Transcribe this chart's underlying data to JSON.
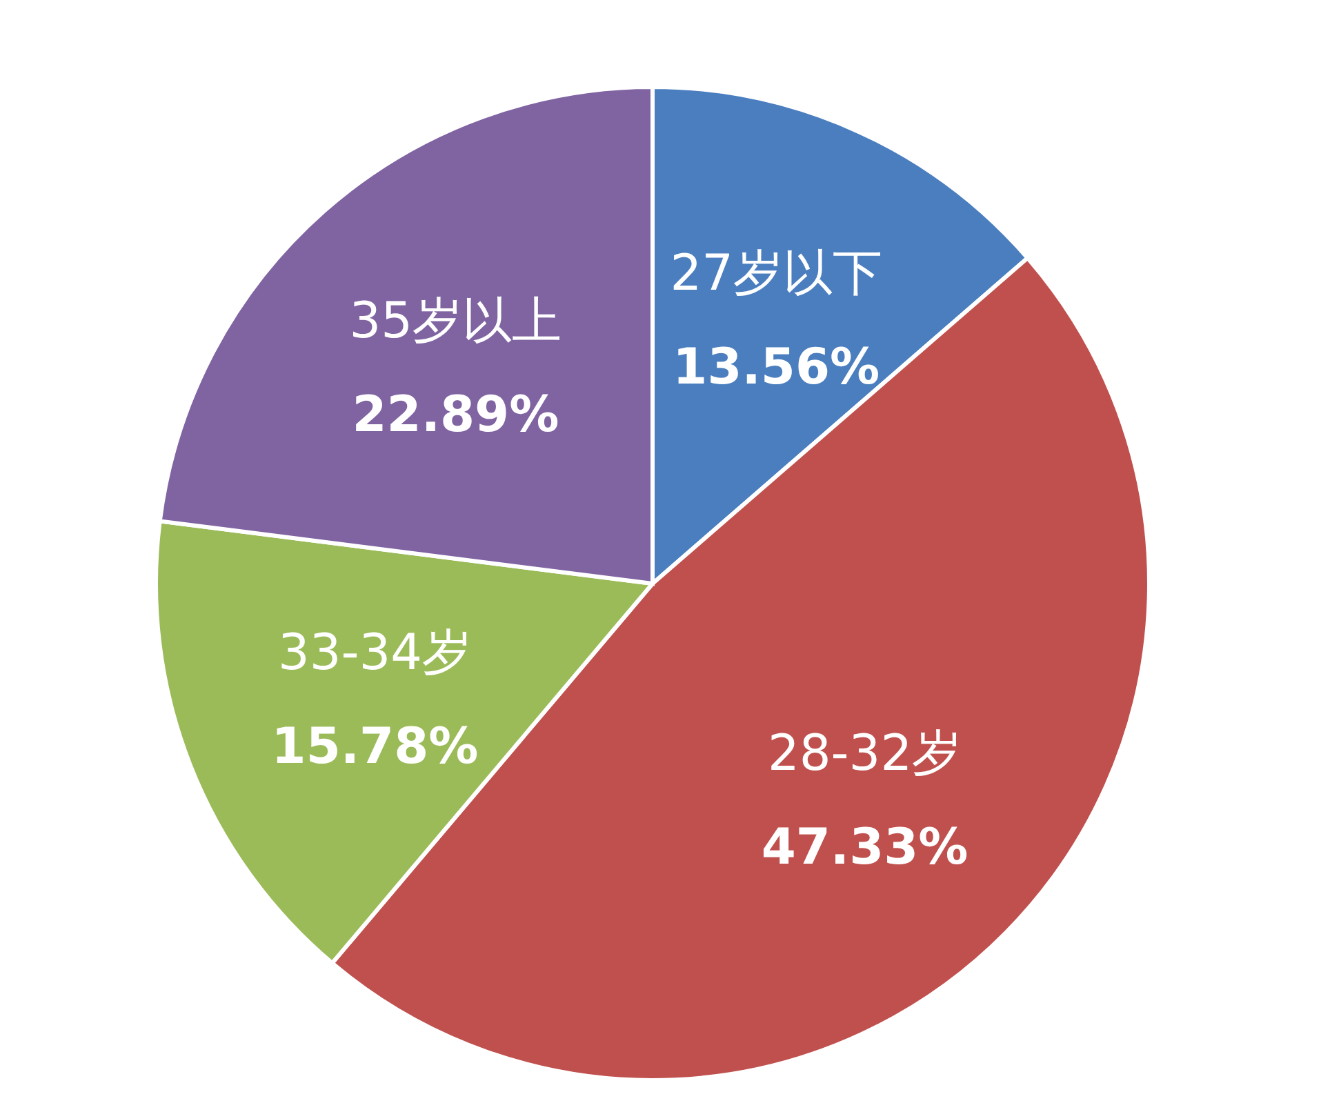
{
  "chart_data": {
    "type": "pie",
    "categories": [
      "27岁以下",
      "28-32岁",
      "33-34岁",
      "35岁以上"
    ],
    "values": [
      13.56,
      47.33,
      15.78,
      22.89
    ],
    "value_labels": [
      "13.56%",
      "47.33%",
      "15.78%",
      "22.89%"
    ],
    "colors": [
      "#4a7ebf",
      "#c0504d",
      "#9bbb59",
      "#8064a2"
    ],
    "legend": false
  }
}
